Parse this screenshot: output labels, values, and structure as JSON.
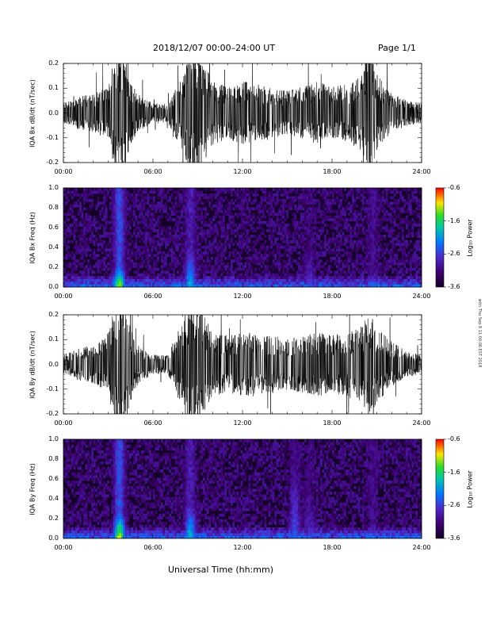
{
  "header": {
    "date_range": "2018/12/07  00:00–24:00 UT",
    "page": "Page 1/1"
  },
  "footer": {
    "xlabel": "Universal Time (hh:mm)"
  },
  "side_note": "with Thu Sep 8 11:00:06 EST 2018",
  "colorbar": {
    "label": "Log₁₀ Power",
    "ticks": [
      "-0.6",
      "-1.6",
      "-2.6",
      "-3.6"
    ]
  },
  "colors": {
    "trace": "#000000",
    "bg": "#ffffff"
  },
  "chart_data": [
    {
      "type": "line",
      "ylabel": "IQA Bx dB/dt (nT/sec)",
      "xlim": [
        "00:00",
        "24:00"
      ],
      "xticks": [
        "00:00",
        "06:00",
        "12:00",
        "18:00",
        "24:00"
      ],
      "ylim": [
        -0.2,
        0.2
      ],
      "yticks": [
        "0.2",
        "0.1",
        "0.0",
        "-0.1",
        "-0.2"
      ],
      "series": [
        {
          "x": [
            "00:00",
            "01:00",
            "02:00",
            "03:00",
            "03:30",
            "04:00",
            "04:30",
            "05:00",
            "06:00",
            "07:00",
            "08:00",
            "08:30",
            "09:00",
            "09:30",
            "10:00",
            "11:00",
            "12:00",
            "13:00",
            "14:00",
            "15:00",
            "16:00",
            "17:00",
            "18:00",
            "19:00",
            "20:00",
            "20:30",
            "21:00",
            "22:00",
            "23:00",
            "24:00"
          ],
          "amplitude": [
            0.03,
            0.05,
            0.06,
            0.08,
            0.2,
            0.2,
            0.1,
            0.06,
            0.03,
            0.03,
            0.12,
            0.2,
            0.2,
            0.15,
            0.1,
            0.08,
            0.1,
            0.09,
            0.08,
            0.07,
            0.08,
            0.1,
            0.08,
            0.09,
            0.12,
            0.2,
            0.12,
            0.06,
            0.04,
            0.03
          ]
        }
      ]
    },
    {
      "type": "heatmap",
      "ylabel": "IQA Bx Freq (Hz)",
      "xlim": [
        "00:00",
        "24:00"
      ],
      "xticks": [
        "00:00",
        "06:00",
        "12:00",
        "18:00",
        "24:00"
      ],
      "ylim": [
        0.0,
        1.0
      ],
      "yticks": [
        "1.0",
        "0.8",
        "0.6",
        "0.4",
        "0.2",
        "0.0"
      ],
      "zlim": [
        -3.6,
        -0.6
      ],
      "features": [
        {
          "time": "03:45",
          "fmax": 0.2,
          "log_power": -1.2
        },
        {
          "time": "08:30",
          "fmax": 0.35,
          "log_power": -2.0
        },
        {
          "time": "16:30",
          "fmax": 0.45,
          "log_power": -2.8
        },
        {
          "time": "20:45",
          "fmax": 0.15,
          "log_power": -2.5
        }
      ]
    },
    {
      "type": "line",
      "ylabel": "IQA By dB/dt (nT/sec)",
      "xlim": [
        "00:00",
        "24:00"
      ],
      "xticks": [
        "00:00",
        "06:00",
        "12:00",
        "18:00",
        "24:00"
      ],
      "ylim": [
        -0.2,
        0.2
      ],
      "yticks": [
        "0.2",
        "0.1",
        "0.0",
        "-0.1",
        "-0.2"
      ],
      "series": [
        {
          "x": [
            "00:00",
            "01:00",
            "02:00",
            "03:00",
            "03:30",
            "04:00",
            "04:30",
            "05:00",
            "06:00",
            "07:00",
            "08:00",
            "08:30",
            "09:00",
            "09:30",
            "10:00",
            "11:00",
            "12:00",
            "13:00",
            "14:00",
            "15:00",
            "16:00",
            "17:00",
            "18:00",
            "19:00",
            "20:00",
            "20:30",
            "21:00",
            "22:00",
            "23:00",
            "24:00"
          ],
          "amplitude": [
            0.03,
            0.05,
            0.06,
            0.1,
            0.2,
            0.2,
            0.12,
            0.06,
            0.03,
            0.03,
            0.14,
            0.2,
            0.2,
            0.15,
            0.1,
            0.09,
            0.1,
            0.1,
            0.09,
            0.08,
            0.09,
            0.1,
            0.09,
            0.1,
            0.12,
            0.16,
            0.12,
            0.07,
            0.04,
            0.03
          ]
        }
      ]
    },
    {
      "type": "heatmap",
      "ylabel": "IQA By Freq (Hz)",
      "xlim": [
        "00:00",
        "24:00"
      ],
      "xticks": [
        "00:00",
        "06:00",
        "12:00",
        "18:00",
        "24:00"
      ],
      "ylim": [
        0.0,
        1.0
      ],
      "yticks": [
        "1.0",
        "0.8",
        "0.6",
        "0.4",
        "0.2",
        "0.0"
      ],
      "zlim": [
        -3.6,
        -0.6
      ],
      "features": [
        {
          "time": "03:45",
          "fmax": 0.25,
          "log_power": -1.2
        },
        {
          "time": "08:30",
          "fmax": 0.35,
          "log_power": -2.0
        },
        {
          "time": "15:30",
          "fmax": 0.75,
          "log_power": -2.6
        },
        {
          "time": "16:30",
          "fmax": 0.5,
          "log_power": -2.8
        },
        {
          "time": "20:45",
          "fmax": 0.15,
          "log_power": -2.5
        }
      ]
    }
  ]
}
